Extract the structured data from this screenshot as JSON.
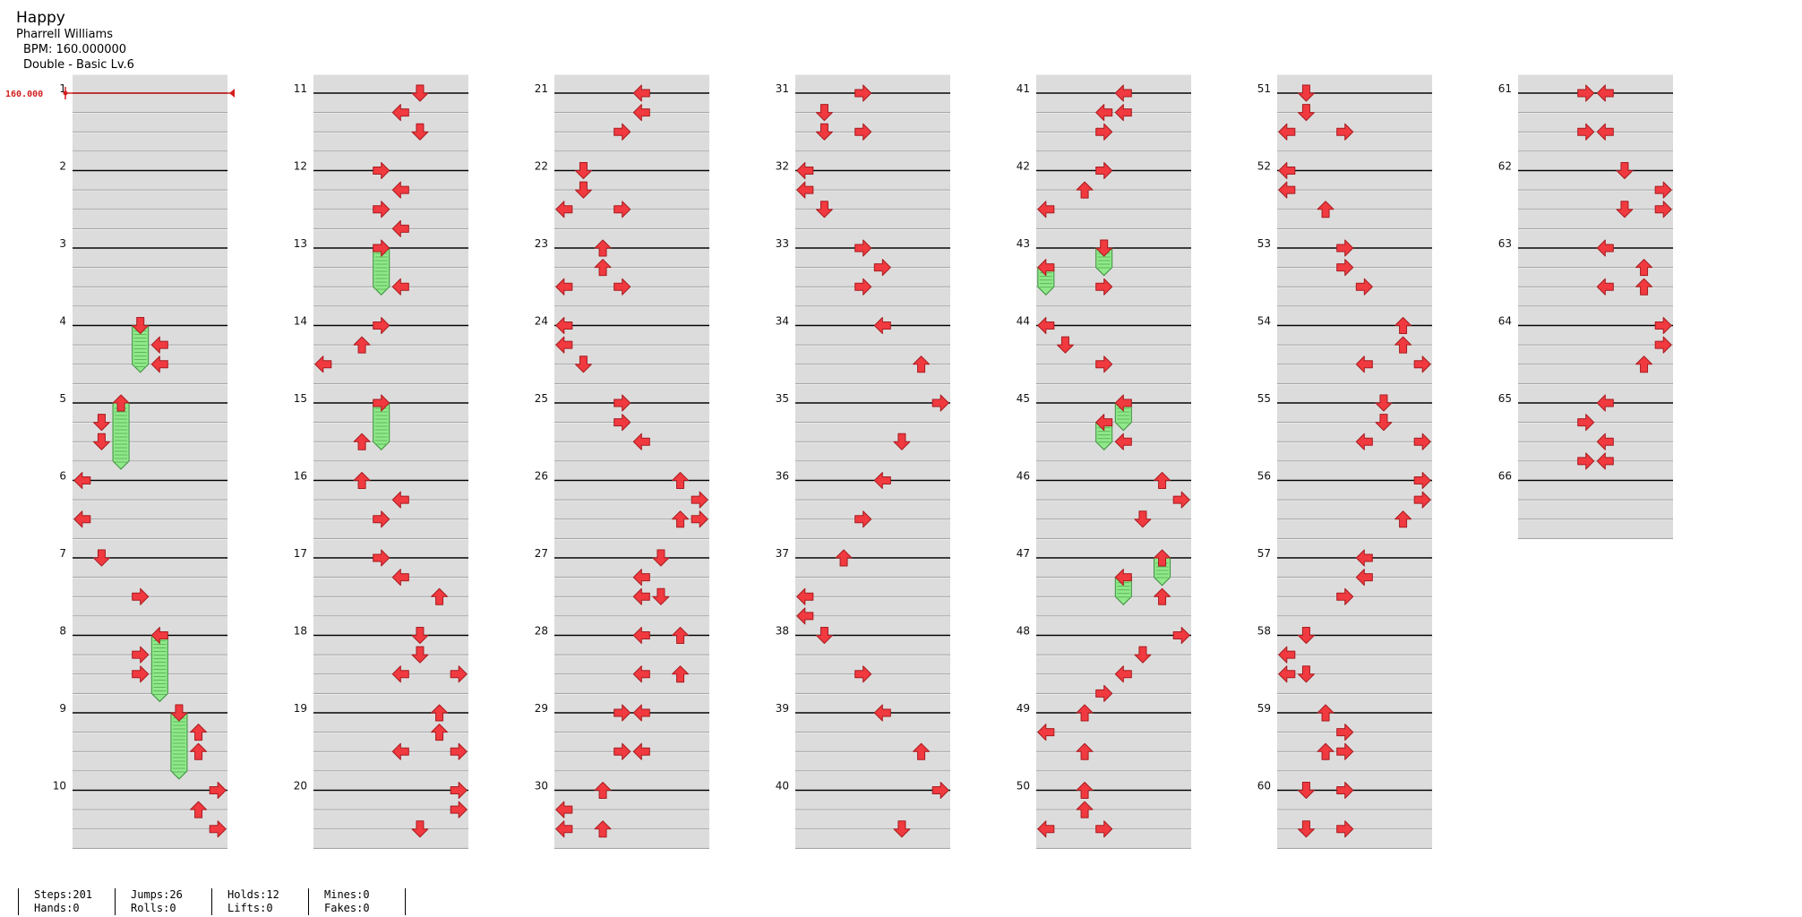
{
  "song": {
    "title": "Happy",
    "artist": "Pharrell Williams",
    "bpm_label": "BPM: 160.000000",
    "difficulty": "Double - Basic  Lv.6"
  },
  "bpm_marker": "160.000",
  "colors": {
    "arrow": "#f03a3f",
    "arrow_stroke": "#a81b20",
    "hold": "#8fe88a",
    "hold_stroke": "#3b8f3b",
    "beat_line": "#000000",
    "sub_line": "#9a9a9a",
    "band": "#dcdcdc",
    "bpm": "#d42020"
  },
  "chart": {
    "lanes": 8,
    "columns": 7,
    "measures_per_column": 10,
    "total_measures": 66,
    "notes": [
      {
        "m": 4,
        "lane": 3,
        "row": 0,
        "dir": "down",
        "hold": 2
      },
      {
        "m": 4,
        "lane": 4,
        "row": 1,
        "dir": "left"
      },
      {
        "m": 4,
        "lane": 4,
        "row": 2,
        "dir": "left"
      },
      {
        "m": 5,
        "lane": 2,
        "row": 0,
        "dir": "up",
        "hold": 3
      },
      {
        "m": 5,
        "lane": 1,
        "row": 1,
        "dir": "down"
      },
      {
        "m": 5,
        "lane": 1,
        "row": 2,
        "dir": "down"
      },
      {
        "m": 6,
        "lane": 0,
        "row": 0,
        "dir": "left"
      },
      {
        "m": 6,
        "lane": 0,
        "row": 2,
        "dir": "left"
      },
      {
        "m": 7,
        "lane": 1,
        "row": 0,
        "dir": "down"
      },
      {
        "m": 7,
        "lane": 3,
        "row": 2,
        "dir": "right"
      },
      {
        "m": 8,
        "lane": 4,
        "row": 0,
        "dir": "left",
        "hold": 3
      },
      {
        "m": 8,
        "lane": 3,
        "row": 1,
        "dir": "right"
      },
      {
        "m": 8,
        "lane": 3,
        "row": 2,
        "dir": "right"
      },
      {
        "m": 9,
        "lane": 5,
        "row": 0,
        "dir": "down",
        "hold": 3
      },
      {
        "m": 9,
        "lane": 6,
        "row": 1,
        "dir": "up"
      },
      {
        "m": 9,
        "lane": 6,
        "row": 2,
        "dir": "up"
      },
      {
        "m": 10,
        "lane": 7,
        "row": 0,
        "dir": "right"
      },
      {
        "m": 10,
        "lane": 6,
        "row": 1,
        "dir": "up"
      },
      {
        "m": 10,
        "lane": 7,
        "row": 2,
        "dir": "right"
      },
      {
        "m": 11,
        "lane": 5,
        "row": 0,
        "dir": "down"
      },
      {
        "m": 11,
        "lane": 4,
        "row": 1,
        "dir": "left"
      },
      {
        "m": 11,
        "lane": 5,
        "row": 2,
        "dir": "down"
      },
      {
        "m": 12,
        "lane": 3,
        "row": 0,
        "dir": "right"
      },
      {
        "m": 12,
        "lane": 4,
        "row": 1,
        "dir": "left"
      },
      {
        "m": 12,
        "lane": 3,
        "row": 2,
        "dir": "right"
      },
      {
        "m": 12,
        "lane": 4,
        "row": 3,
        "dir": "left"
      },
      {
        "m": 13,
        "lane": 3,
        "row": 0,
        "dir": "right",
        "hold": 2
      },
      {
        "m": 13,
        "lane": 4,
        "row": 2,
        "dir": "left"
      },
      {
        "m": 14,
        "lane": 3,
        "row": 0,
        "dir": "right"
      },
      {
        "m": 14,
        "lane": 2,
        "row": 1,
        "dir": "up"
      },
      {
        "m": 14,
        "lane": 0,
        "row": 2,
        "dir": "left"
      },
      {
        "m": 15,
        "lane": 3,
        "row": 0,
        "dir": "right",
        "hold": 2
      },
      {
        "m": 15,
        "lane": 2,
        "row": 2,
        "dir": "up"
      },
      {
        "m": 16,
        "lane": 2,
        "row": 0,
        "dir": "up"
      },
      {
        "m": 16,
        "lane": 4,
        "row": 1,
        "dir": "left"
      },
      {
        "m": 16,
        "lane": 3,
        "row": 2,
        "dir": "right"
      },
      {
        "m": 17,
        "lane": 3,
        "row": 0,
        "dir": "right"
      },
      {
        "m": 17,
        "lane": 4,
        "row": 1,
        "dir": "left"
      },
      {
        "m": 17,
        "lane": 6,
        "row": 2,
        "dir": "up"
      },
      {
        "m": 18,
        "lane": 5,
        "row": 0,
        "dir": "down"
      },
      {
        "m": 18,
        "lane": 5,
        "row": 1,
        "dir": "down"
      },
      {
        "m": 18,
        "lane": 4,
        "row": 2,
        "dir": "left"
      },
      {
        "m": 18,
        "lane": 7,
        "row": 2,
        "dir": "right"
      },
      {
        "m": 19,
        "lane": 6,
        "row": 0,
        "dir": "up"
      },
      {
        "m": 19,
        "lane": 6,
        "row": 1,
        "dir": "up"
      },
      {
        "m": 19,
        "lane": 4,
        "row": 2,
        "dir": "left"
      },
      {
        "m": 19,
        "lane": 7,
        "row": 2,
        "dir": "right"
      },
      {
        "m": 20,
        "lane": 7,
        "row": 0,
        "dir": "right"
      },
      {
        "m": 20,
        "lane": 7,
        "row": 1,
        "dir": "right"
      },
      {
        "m": 20,
        "lane": 5,
        "row": 2,
        "dir": "down"
      },
      {
        "m": 21,
        "lane": 4,
        "row": 0,
        "dir": "left"
      },
      {
        "m": 21,
        "lane": 4,
        "row": 1,
        "dir": "left"
      },
      {
        "m": 21,
        "lane": 3,
        "row": 2,
        "dir": "right"
      },
      {
        "m": 22,
        "lane": 1,
        "row": 0,
        "dir": "down"
      },
      {
        "m": 22,
        "lane": 1,
        "row": 1,
        "dir": "down"
      },
      {
        "m": 22,
        "lane": 0,
        "row": 2,
        "dir": "left"
      },
      {
        "m": 22,
        "lane": 3,
        "row": 2,
        "dir": "right"
      },
      {
        "m": 23,
        "lane": 2,
        "row": 0,
        "dir": "up"
      },
      {
        "m": 23,
        "lane": 2,
        "row": 1,
        "dir": "up"
      },
      {
        "m": 23,
        "lane": 0,
        "row": 2,
        "dir": "left"
      },
      {
        "m": 23,
        "lane": 3,
        "row": 2,
        "dir": "right"
      },
      {
        "m": 24,
        "lane": 0,
        "row": 0,
        "dir": "left"
      },
      {
        "m": 24,
        "lane": 0,
        "row": 1,
        "dir": "left"
      },
      {
        "m": 24,
        "lane": 1,
        "row": 2,
        "dir": "down"
      },
      {
        "m": 25,
        "lane": 3,
        "row": 0,
        "dir": "right"
      },
      {
        "m": 25,
        "lane": 3,
        "row": 1,
        "dir": "right"
      },
      {
        "m": 25,
        "lane": 4,
        "row": 2,
        "dir": "left"
      },
      {
        "m": 26,
        "lane": 6,
        "row": 0,
        "dir": "up"
      },
      {
        "m": 26,
        "lane": 7,
        "row": 1,
        "dir": "right"
      },
      {
        "m": 26,
        "lane": 6,
        "row": 2,
        "dir": "up"
      },
      {
        "m": 26,
        "lane": 7,
        "row": 2,
        "dir": "right"
      },
      {
        "m": 27,
        "lane": 5,
        "row": 0,
        "dir": "down"
      },
      {
        "m": 27,
        "lane": 4,
        "row": 1,
        "dir": "left"
      },
      {
        "m": 27,
        "lane": 4,
        "row": 2,
        "dir": "left"
      },
      {
        "m": 27,
        "lane": 5,
        "row": 2,
        "dir": "down"
      },
      {
        "m": 28,
        "lane": 4,
        "row": 0,
        "dir": "left"
      },
      {
        "m": 28,
        "lane": 6,
        "row": 0,
        "dir": "up"
      },
      {
        "m": 28,
        "lane": 4,
        "row": 2,
        "dir": "left"
      },
      {
        "m": 28,
        "lane": 6,
        "row": 2,
        "dir": "up"
      },
      {
        "m": 29,
        "lane": 3,
        "row": 0,
        "dir": "right"
      },
      {
        "m": 29,
        "lane": 4,
        "row": 0,
        "dir": "left"
      },
      {
        "m": 29,
        "lane": 3,
        "row": 2,
        "dir": "right"
      },
      {
        "m": 29,
        "lane": 4,
        "row": 2,
        "dir": "left"
      },
      {
        "m": 30,
        "lane": 2,
        "row": 0,
        "dir": "up"
      },
      {
        "m": 30,
        "lane": 0,
        "row": 1,
        "dir": "left"
      },
      {
        "m": 30,
        "lane": 0,
        "row": 2,
        "dir": "left"
      },
      {
        "m": 30,
        "lane": 2,
        "row": 2,
        "dir": "up"
      },
      {
        "m": 31,
        "lane": 3,
        "row": 0,
        "dir": "right"
      },
      {
        "m": 31,
        "lane": 1,
        "row": 1,
        "dir": "down"
      },
      {
        "m": 31,
        "lane": 1,
        "row": 2,
        "dir": "down"
      },
      {
        "m": 31,
        "lane": 3,
        "row": 2,
        "dir": "right"
      },
      {
        "m": 32,
        "lane": 0,
        "row": 0,
        "dir": "left"
      },
      {
        "m": 32,
        "lane": 0,
        "row": 1,
        "dir": "left"
      },
      {
        "m": 32,
        "lane": 1,
        "row": 2,
        "dir": "down"
      },
      {
        "m": 33,
        "lane": 3,
        "row": 0,
        "dir": "right"
      },
      {
        "m": 33,
        "lane": 4,
        "row": 1,
        "dir": "right"
      },
      {
        "m": 33,
        "lane": 3,
        "row": 2,
        "dir": "right"
      },
      {
        "m": 34,
        "lane": 4,
        "row": 0,
        "dir": "left"
      },
      {
        "m": 34,
        "lane": 6,
        "row": 2,
        "dir": "up"
      },
      {
        "m": 35,
        "lane": 7,
        "row": 0,
        "dir": "right"
      },
      {
        "m": 35,
        "lane": 5,
        "row": 2,
        "dir": "down"
      },
      {
        "m": 36,
        "lane": 4,
        "row": 0,
        "dir": "left"
      },
      {
        "m": 36,
        "lane": 3,
        "row": 2,
        "dir": "right"
      },
      {
        "m": 37,
        "lane": 2,
        "row": 0,
        "dir": "up"
      },
      {
        "m": 37,
        "lane": 0,
        "row": 2,
        "dir": "left"
      },
      {
        "m": 37,
        "lane": 0,
        "row": 3,
        "dir": "left"
      },
      {
        "m": 38,
        "lane": 1,
        "row": 0,
        "dir": "down"
      },
      {
        "m": 38,
        "lane": 3,
        "row": 2,
        "dir": "right"
      },
      {
        "m": 39,
        "lane": 4,
        "row": 0,
        "dir": "left"
      },
      {
        "m": 39,
        "lane": 6,
        "row": 2,
        "dir": "up"
      },
      {
        "m": 40,
        "lane": 7,
        "row": 0,
        "dir": "right"
      },
      {
        "m": 40,
        "lane": 5,
        "row": 2,
        "dir": "down"
      },
      {
        "m": 41,
        "lane": 4,
        "row": 0,
        "dir": "left"
      },
      {
        "m": 41,
        "lane": 3,
        "row": 1,
        "dir": "left"
      },
      {
        "m": 41,
        "lane": 4,
        "row": 1,
        "dir": "left"
      },
      {
        "m": 41,
        "lane": 3,
        "row": 2,
        "dir": "right"
      },
      {
        "m": 42,
        "lane": 3,
        "row": 0,
        "dir": "right"
      },
      {
        "m": 42,
        "lane": 2,
        "row": 1,
        "dir": "up"
      },
      {
        "m": 42,
        "lane": 0,
        "row": 2,
        "dir": "left"
      },
      {
        "m": 43,
        "lane": 3,
        "row": 0,
        "dir": "down",
        "hold": 1
      },
      {
        "m": 43,
        "lane": 0,
        "row": 1,
        "dir": "left",
        "hold": 1
      },
      {
        "m": 43,
        "lane": 3,
        "row": 2,
        "dir": "right"
      },
      {
        "m": 44,
        "lane": 0,
        "row": 0,
        "dir": "left"
      },
      {
        "m": 44,
        "lane": 1,
        "row": 1,
        "dir": "down"
      },
      {
        "m": 44,
        "lane": 3,
        "row": 2,
        "dir": "right"
      },
      {
        "m": 45,
        "lane": 4,
        "row": 0,
        "dir": "left",
        "hold": 1
      },
      {
        "m": 45,
        "lane": 3,
        "row": 1,
        "dir": "left",
        "hold": 1
      },
      {
        "m": 45,
        "lane": 4,
        "row": 2,
        "dir": "left"
      },
      {
        "m": 46,
        "lane": 6,
        "row": 0,
        "dir": "up"
      },
      {
        "m": 46,
        "lane": 7,
        "row": 1,
        "dir": "right"
      },
      {
        "m": 46,
        "lane": 5,
        "row": 2,
        "dir": "down"
      },
      {
        "m": 47,
        "lane": 6,
        "row": 0,
        "dir": "up",
        "hold": 1
      },
      {
        "m": 47,
        "lane": 4,
        "row": 1,
        "dir": "left",
        "hold": 1
      },
      {
        "m": 47,
        "lane": 6,
        "row": 2,
        "dir": "up"
      },
      {
        "m": 48,
        "lane": 7,
        "row": 0,
        "dir": "right"
      },
      {
        "m": 48,
        "lane": 5,
        "row": 1,
        "dir": "down"
      },
      {
        "m": 48,
        "lane": 4,
        "row": 2,
        "dir": "left"
      },
      {
        "m": 48,
        "lane": 3,
        "row": 3,
        "dir": "right"
      },
      {
        "m": 49,
        "lane": 2,
        "row": 0,
        "dir": "up"
      },
      {
        "m": 49,
        "lane": 0,
        "row": 1,
        "dir": "left"
      },
      {
        "m": 49,
        "lane": 2,
        "row": 2,
        "dir": "up"
      },
      {
        "m": 50,
        "lane": 2,
        "row": 0,
        "dir": "up"
      },
      {
        "m": 50,
        "lane": 2,
        "row": 1,
        "dir": "up"
      },
      {
        "m": 50,
        "lane": 0,
        "row": 2,
        "dir": "left"
      },
      {
        "m": 50,
        "lane": 3,
        "row": 2,
        "dir": "right"
      },
      {
        "m": 51,
        "lane": 1,
        "row": 0,
        "dir": "down"
      },
      {
        "m": 51,
        "lane": 1,
        "row": 1,
        "dir": "down"
      },
      {
        "m": 51,
        "lane": 0,
        "row": 2,
        "dir": "left"
      },
      {
        "m": 51,
        "lane": 3,
        "row": 2,
        "dir": "right"
      },
      {
        "m": 52,
        "lane": 0,
        "row": 0,
        "dir": "left"
      },
      {
        "m": 52,
        "lane": 0,
        "row": 1,
        "dir": "left"
      },
      {
        "m": 52,
        "lane": 2,
        "row": 2,
        "dir": "up"
      },
      {
        "m": 53,
        "lane": 3,
        "row": 0,
        "dir": "right"
      },
      {
        "m": 53,
        "lane": 3,
        "row": 1,
        "dir": "right"
      },
      {
        "m": 53,
        "lane": 4,
        "row": 2,
        "dir": "right"
      },
      {
        "m": 54,
        "lane": 6,
        "row": 0,
        "dir": "up"
      },
      {
        "m": 54,
        "lane": 6,
        "row": 1,
        "dir": "up"
      },
      {
        "m": 54,
        "lane": 4,
        "row": 2,
        "dir": "left"
      },
      {
        "m": 54,
        "lane": 7,
        "row": 2,
        "dir": "right"
      },
      {
        "m": 55,
        "lane": 5,
        "row": 0,
        "dir": "down"
      },
      {
        "m": 55,
        "lane": 5,
        "row": 1,
        "dir": "down"
      },
      {
        "m": 55,
        "lane": 4,
        "row": 2,
        "dir": "left"
      },
      {
        "m": 55,
        "lane": 7,
        "row": 2,
        "dir": "right"
      },
      {
        "m": 56,
        "lane": 7,
        "row": 0,
        "dir": "right"
      },
      {
        "m": 56,
        "lane": 7,
        "row": 1,
        "dir": "right"
      },
      {
        "m": 56,
        "lane": 6,
        "row": 2,
        "dir": "up"
      },
      {
        "m": 57,
        "lane": 4,
        "row": 0,
        "dir": "left"
      },
      {
        "m": 57,
        "lane": 4,
        "row": 1,
        "dir": "left"
      },
      {
        "m": 57,
        "lane": 3,
        "row": 2,
        "dir": "right"
      },
      {
        "m": 58,
        "lane": 1,
        "row": 0,
        "dir": "down"
      },
      {
        "m": 58,
        "lane": 0,
        "row": 1,
        "dir": "left"
      },
      {
        "m": 58,
        "lane": 0,
        "row": 2,
        "dir": "left"
      },
      {
        "m": 58,
        "lane": 1,
        "row": 2,
        "dir": "down"
      },
      {
        "m": 59,
        "lane": 2,
        "row": 0,
        "dir": "up"
      },
      {
        "m": 59,
        "lane": 3,
        "row": 1,
        "dir": "right"
      },
      {
        "m": 59,
        "lane": 2,
        "row": 2,
        "dir": "up"
      },
      {
        "m": 59,
        "lane": 3,
        "row": 2,
        "dir": "right"
      },
      {
        "m": 60,
        "lane": 1,
        "row": 0,
        "dir": "down"
      },
      {
        "m": 60,
        "lane": 3,
        "row": 0,
        "dir": "right"
      },
      {
        "m": 60,
        "lane": 1,
        "row": 2,
        "dir": "down"
      },
      {
        "m": 60,
        "lane": 3,
        "row": 2,
        "dir": "right"
      },
      {
        "m": 61,
        "lane": 3,
        "row": 0,
        "dir": "right"
      },
      {
        "m": 61,
        "lane": 4,
        "row": 0,
        "dir": "left"
      },
      {
        "m": 61,
        "lane": 3,
        "row": 2,
        "dir": "right"
      },
      {
        "m": 61,
        "lane": 4,
        "row": 2,
        "dir": "left"
      },
      {
        "m": 62,
        "lane": 5,
        "row": 0,
        "dir": "down"
      },
      {
        "m": 62,
        "lane": 7,
        "row": 1,
        "dir": "right"
      },
      {
        "m": 62,
        "lane": 5,
        "row": 2,
        "dir": "down"
      },
      {
        "m": 62,
        "lane": 7,
        "row": 2,
        "dir": "right"
      },
      {
        "m": 63,
        "lane": 4,
        "row": 0,
        "dir": "left"
      },
      {
        "m": 63,
        "lane": 6,
        "row": 1,
        "dir": "up"
      },
      {
        "m": 63,
        "lane": 4,
        "row": 2,
        "dir": "left"
      },
      {
        "m": 63,
        "lane": 6,
        "row": 2,
        "dir": "up"
      },
      {
        "m": 64,
        "lane": 7,
        "row": 0,
        "dir": "right"
      },
      {
        "m": 64,
        "lane": 7,
        "row": 1,
        "dir": "right"
      },
      {
        "m": 64,
        "lane": 6,
        "row": 2,
        "dir": "up"
      },
      {
        "m": 65,
        "lane": 4,
        "row": 0,
        "dir": "left"
      },
      {
        "m": 65,
        "lane": 3,
        "row": 1,
        "dir": "right"
      },
      {
        "m": 65,
        "lane": 4,
        "row": 2,
        "dir": "left"
      },
      {
        "m": 65,
        "lane": 3,
        "row": 3,
        "dir": "right"
      },
      {
        "m": 65,
        "lane": 4,
        "row": 3,
        "dir": "left"
      }
    ]
  },
  "stats": [
    {
      "top": "Steps:201",
      "bottom": "Hands:0"
    },
    {
      "top": "Jumps:26",
      "bottom": "Rolls:0"
    },
    {
      "top": "Holds:12",
      "bottom": "Lifts:0"
    },
    {
      "top": "Mines:0",
      "bottom": "Fakes:0"
    }
  ]
}
